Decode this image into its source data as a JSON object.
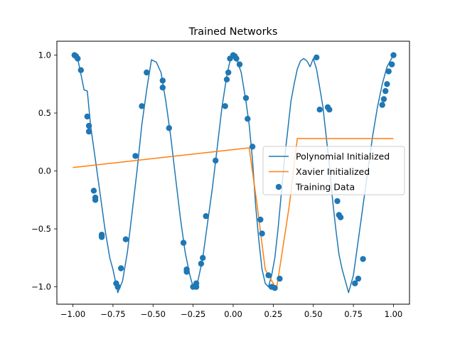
{
  "chart_data": {
    "type": "line",
    "title": "Trained Networks",
    "xlabel": "",
    "ylabel": "",
    "xlim": [
      -1.1,
      1.1
    ],
    "ylim": [
      -1.15,
      1.12
    ],
    "x_ticks": [
      -1.0,
      -0.75,
      -0.5,
      -0.25,
      0.0,
      0.25,
      0.5,
      0.75,
      1.0
    ],
    "x_tick_labels": [
      "−1.00",
      "−0.75",
      "−0.50",
      "−0.25",
      "0.00",
      "0.25",
      "0.50",
      "0.75",
      "1.00"
    ],
    "y_ticks": [
      -1.0,
      -0.5,
      0.0,
      0.5,
      1.0
    ],
    "y_tick_labels": [
      "−1.0",
      "−0.5",
      "0.0",
      "0.5",
      "1.0"
    ],
    "grid": false,
    "legend_position": "center-right",
    "series": [
      {
        "name": "Polynomial Initialized",
        "kind": "line",
        "color": "#1f77b4",
        "x": [
          -1.0,
          -0.97,
          -0.93,
          -0.91,
          -0.89,
          -0.86,
          -0.83,
          -0.8,
          -0.77,
          -0.75,
          -0.72,
          -0.69,
          -0.66,
          -0.63,
          -0.6,
          -0.57,
          -0.54,
          -0.51,
          -0.48,
          -0.45,
          -0.42,
          -0.39,
          -0.36,
          -0.33,
          -0.3,
          -0.27,
          -0.25,
          -0.22,
          -0.19,
          -0.16,
          -0.13,
          -0.1,
          -0.07,
          -0.04,
          -0.02,
          0.0,
          0.02,
          0.05,
          0.08,
          0.1,
          0.12,
          0.14,
          0.16,
          0.18,
          0.2,
          0.22,
          0.24,
          0.26,
          0.28,
          0.3,
          0.32,
          0.34,
          0.36,
          0.38,
          0.4,
          0.42,
          0.44,
          0.46,
          0.48,
          0.5,
          0.52,
          0.54,
          0.56,
          0.58,
          0.6,
          0.62,
          0.64,
          0.66,
          0.68,
          0.7,
          0.72,
          0.75,
          0.78,
          0.81,
          0.84,
          0.87,
          0.9,
          0.93,
          0.96,
          0.98,
          1.0
        ],
        "y": [
          1.0,
          0.97,
          0.7,
          0.69,
          0.4,
          0.1,
          -0.2,
          -0.5,
          -0.75,
          -0.85,
          -1.05,
          -0.95,
          -0.7,
          -0.35,
          0.0,
          0.4,
          0.7,
          0.96,
          0.94,
          0.85,
          0.6,
          0.3,
          -0.05,
          -0.4,
          -0.7,
          -0.9,
          -1.0,
          -0.95,
          -0.75,
          -0.45,
          -0.15,
          0.2,
          0.55,
          0.82,
          0.95,
          1.0,
          0.97,
          0.85,
          0.6,
          0.4,
          0.1,
          -0.3,
          -0.6,
          -0.85,
          -0.97,
          -1.0,
          -0.9,
          -0.75,
          -0.5,
          -0.2,
          0.1,
          0.35,
          0.6,
          0.75,
          0.88,
          0.95,
          0.97,
          0.95,
          0.9,
          0.97,
          0.88,
          0.72,
          0.55,
          0.3,
          0.05,
          -0.25,
          -0.5,
          -0.72,
          -0.85,
          -0.95,
          -1.05,
          -0.9,
          -0.6,
          -0.3,
          0.0,
          0.3,
          0.55,
          0.75,
          0.9,
          0.95,
          1.0
        ]
      },
      {
        "name": "Xavier Initialized",
        "kind": "line",
        "color": "#ff7f0e",
        "x": [
          -1.0,
          0.1,
          0.15,
          0.2,
          0.27,
          0.35,
          0.4,
          0.45,
          1.0
        ],
        "y": [
          0.03,
          0.2,
          -0.3,
          -0.85,
          -1.02,
          -0.3,
          0.28,
          0.28,
          0.28
        ]
      },
      {
        "name": "Training Data",
        "kind": "scatter",
        "color": "#1f77b4",
        "x": [
          -0.99,
          -0.98,
          -0.97,
          -0.95,
          -0.91,
          -0.9,
          -0.9,
          -0.87,
          -0.86,
          -0.86,
          -0.82,
          -0.82,
          -0.73,
          -0.72,
          -0.7,
          -0.67,
          -0.61,
          -0.57,
          -0.54,
          -0.44,
          -0.44,
          -0.4,
          -0.31,
          -0.29,
          -0.29,
          -0.25,
          -0.23,
          -0.23,
          -0.2,
          -0.19,
          -0.17,
          -0.11,
          -0.05,
          -0.04,
          -0.03,
          -0.02,
          0.0,
          0.01,
          0.02,
          0.04,
          0.08,
          0.09,
          0.12,
          0.17,
          0.18,
          0.22,
          0.24,
          0.26,
          0.29,
          0.52,
          0.54,
          0.59,
          0.6,
          0.65,
          0.66,
          0.67,
          0.76,
          0.78,
          0.81,
          0.93,
          0.94,
          0.95,
          0.96,
          0.97,
          0.99,
          1.0
        ],
        "y": [
          1.0,
          0.99,
          0.97,
          0.87,
          0.47,
          0.39,
          0.34,
          -0.17,
          -0.23,
          -0.25,
          -0.55,
          -0.57,
          -0.97,
          -1.0,
          -0.84,
          -0.59,
          0.13,
          0.56,
          0.85,
          0.78,
          0.72,
          0.37,
          -0.62,
          -0.85,
          -0.87,
          -1.0,
          -1.0,
          -0.97,
          -0.8,
          -0.75,
          -0.39,
          0.09,
          0.56,
          0.79,
          0.85,
          0.97,
          1.0,
          0.99,
          0.97,
          0.92,
          0.63,
          0.45,
          0.21,
          -0.42,
          -0.54,
          -0.9,
          -1.0,
          -1.01,
          -0.93,
          0.98,
          0.53,
          0.55,
          0.53,
          -0.26,
          -0.38,
          -0.4,
          -0.97,
          -0.93,
          -0.76,
          0.57,
          0.62,
          0.69,
          0.75,
          0.86,
          0.92,
          1.0
        ]
      }
    ]
  }
}
